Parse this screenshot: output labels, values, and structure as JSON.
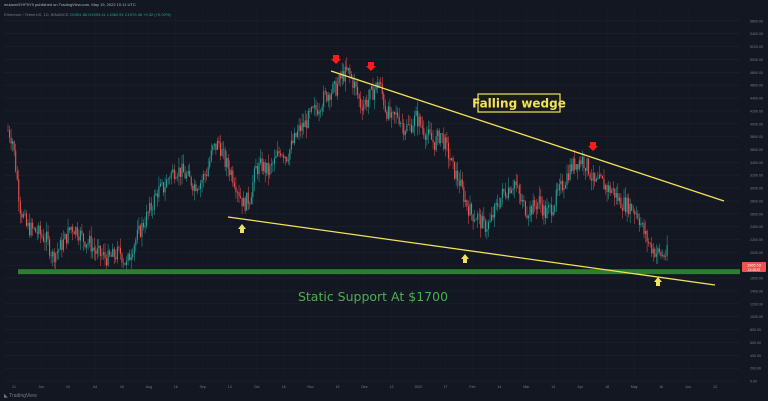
{
  "header": {
    "published": "mulaon/5YIF5Y9 published on TradingView.com, May 19, 2022 10:11 UTC",
    "symbol_line": "Ethereum / TetherUS, 1D, BINANCE",
    "ohlc_line": "O1951.86 H1993.41 L1962.91 C1970.46 +0.32 (+0.02%)"
  },
  "footer": {
    "brand": "TradingView"
  },
  "annotations": {
    "pattern_label": "Falling wedge",
    "support_label": "Static Support At $1700"
  },
  "colors": {
    "background": "#131722",
    "up": "#26a69a",
    "down": "#ef5350",
    "trendline": "#f2e35c",
    "support": "#2e7d32",
    "support_text": "#4caf50",
    "label_bg": "#1b1b1b",
    "red_arrow": "#ff1a1a",
    "yellow_arrow": "#f2e35c"
  },
  "price_tag": {
    "price": "1965.53",
    "sub": "13:48:52"
  },
  "chart_data": {
    "type": "candlestick",
    "ylim": [
      0,
      5800
    ],
    "y_ticks": [
      "5600.00",
      "5400.00",
      "5200.00",
      "5000.00",
      "4800.00",
      "4600.00",
      "4400.00",
      "4200.00",
      "4000.00",
      "3800.00",
      "3600.00",
      "3400.00",
      "3200.00",
      "3000.00",
      "2800.00",
      "2600.00",
      "2400.00",
      "2200.00",
      "2000.00",
      "1800.00",
      "1600.00",
      "1400.00",
      "1200.00",
      "1000.00",
      "800.00",
      "600.00",
      "400.00",
      "200.00",
      "0.00"
    ],
    "x_ticks": [
      "21",
      "Jun",
      "15",
      "Jul",
      "15",
      "Aug",
      "16",
      "Sep",
      "13",
      "Oct",
      "18",
      "Nov",
      "15",
      "Dec",
      "13",
      "2022",
      "17",
      "Feb",
      "14",
      "Mar",
      "14",
      "Apr",
      "18",
      "May",
      "16",
      "Jun",
      "13"
    ],
    "price_path": [
      [
        0,
        3900
      ],
      [
        3,
        3750
      ],
      [
        8,
        2700
      ],
      [
        12,
        2400
      ],
      [
        16,
        2350
      ],
      [
        20,
        2300
      ],
      [
        25,
        2200
      ],
      [
        29,
        1950
      ],
      [
        33,
        2050
      ],
      [
        37,
        2200
      ],
      [
        41,
        2400
      ],
      [
        45,
        2350
      ],
      [
        49,
        2200
      ],
      [
        53,
        2150
      ],
      [
        57,
        2000
      ],
      [
        61,
        1950
      ],
      [
        65,
        1900
      ],
      [
        69,
        1950
      ],
      [
        73,
        2000
      ],
      [
        77,
        1800
      ],
      [
        81,
        2100
      ],
      [
        85,
        2300
      ],
      [
        89,
        2500
      ],
      [
        93,
        2700
      ],
      [
        97,
        2950
      ],
      [
        101,
        3000
      ],
      [
        105,
        3200
      ],
      [
        109,
        3300
      ],
      [
        113,
        3250
      ],
      [
        117,
        3150
      ],
      [
        121,
        3050
      ],
      [
        125,
        3100
      ],
      [
        129,
        3250
      ],
      [
        133,
        3600
      ],
      [
        137,
        3700
      ],
      [
        141,
        3400
      ],
      [
        145,
        3250
      ],
      [
        149,
        3000
      ],
      [
        153,
        2750
      ],
      [
        157,
        2850
      ],
      [
        161,
        3300
      ],
      [
        165,
        3350
      ],
      [
        169,
        3250
      ],
      [
        173,
        3400
      ],
      [
        177,
        3600
      ],
      [
        181,
        3500
      ],
      [
        185,
        3700
      ],
      [
        189,
        3900
      ],
      [
        193,
        4000
      ],
      [
        197,
        4150
      ],
      [
        201,
        4250
      ],
      [
        205,
        4400
      ],
      [
        209,
        4500
      ],
      [
        213,
        4550
      ],
      [
        217,
        4750
      ],
      [
        221,
        4800
      ],
      [
        225,
        4600
      ],
      [
        229,
        4300
      ],
      [
        233,
        4350
      ],
      [
        237,
        4500
      ],
      [
        241,
        4650
      ],
      [
        245,
        4250
      ],
      [
        249,
        4050
      ],
      [
        253,
        4150
      ],
      [
        257,
        3950
      ],
      [
        261,
        3950
      ],
      [
        265,
        4100
      ],
      [
        269,
        3950
      ],
      [
        273,
        3800
      ],
      [
        277,
        3700
      ],
      [
        281,
        3850
      ],
      [
        285,
        3600
      ],
      [
        289,
        3300
      ],
      [
        293,
        3100
      ],
      [
        297,
        2800
      ],
      [
        301,
        2600
      ],
      [
        305,
        2550
      ],
      [
        309,
        2400
      ],
      [
        313,
        2450
      ],
      [
        317,
        2700
      ],
      [
        321,
        2900
      ],
      [
        325,
        3000
      ],
      [
        329,
        3100
      ],
      [
        333,
        2800
      ],
      [
        337,
        2650
      ],
      [
        341,
        2700
      ],
      [
        345,
        2800
      ],
      [
        349,
        2600
      ],
      [
        353,
        2700
      ],
      [
        357,
        2900
      ],
      [
        361,
        3100
      ],
      [
        365,
        3300
      ],
      [
        369,
        3400
      ],
      [
        373,
        3450
      ],
      [
        377,
        3300
      ],
      [
        381,
        3050
      ],
      [
        385,
        3100
      ],
      [
        389,
        3000
      ],
      [
        393,
        2950
      ],
      [
        397,
        2800
      ],
      [
        401,
        2750
      ],
      [
        405,
        2700
      ],
      [
        409,
        2600
      ],
      [
        413,
        2300
      ],
      [
        417,
        2100
      ],
      [
        421,
        2000
      ],
      [
        425,
        1950
      ],
      [
        429,
        2000
      ]
    ],
    "overlays": {
      "upper_trendline": [
        [
          "2021-11-10",
          4860
        ],
        [
          "2022-06-30",
          2900
        ]
      ],
      "lower_trendline": [
        [
          "2021-09-21",
          2600
        ],
        [
          "2022-06-30",
          1700
        ]
      ],
      "static_support": 1700,
      "red_arrows_at": [
        "2021-11-10",
        "2021-12-01",
        "2022-04-03"
      ],
      "yellow_arrows_at": [
        "2021-09-21",
        "2022-01-24",
        "2022-05-12"
      ]
    },
    "last_price": 1965.53
  }
}
